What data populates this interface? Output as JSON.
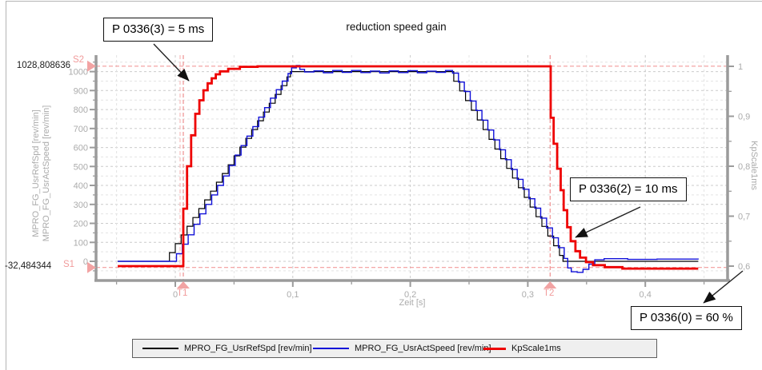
{
  "chart_data": {
    "type": "line",
    "title": "reduction speed gain",
    "x_axis": {
      "label": "Zeit [s]",
      "range_s": [
        -0.067,
        0.47
      ],
      "minor_step_s": 0.05,
      "ticks": [
        {
          "v": 0.0,
          "label": "0"
        },
        {
          "v": 0.1,
          "label": "0,1"
        },
        {
          "v": 0.2,
          "label": "0,2"
        },
        {
          "v": 0.3,
          "label": "0,3"
        },
        {
          "v": 0.4,
          "label": "0,4"
        }
      ]
    },
    "y_left_axis": {
      "labels": [
        "MPRO_FG_UsrRefSpd [rev/min]",
        "MPRO_FG_UsrActSpeed [rev/min]"
      ],
      "range": [
        -100,
        1080
      ],
      "minor_step": 50,
      "ticks": [
        0,
        100,
        200,
        300,
        400,
        500,
        600,
        700,
        800,
        900,
        1000
      ]
    },
    "y_right_axis": {
      "label": "KpScale1ms",
      "range": [
        0.6,
        1.0
      ],
      "minor_step": 0.05,
      "ticks": [
        {
          "v": 1.0,
          "label": "1"
        },
        {
          "v": 0.9,
          "label": "0,9"
        },
        {
          "v": 0.8,
          "label": "0,8"
        },
        {
          "v": 0.7,
          "label": "0,7"
        },
        {
          "v": 0.6,
          "label": "0,6"
        }
      ]
    },
    "cursors": {
      "s2": {
        "name": "S2",
        "value": 1028.808636,
        "value_label": "1028,808636"
      },
      "s1": {
        "name": "S1",
        "value": -32.484344,
        "value_label": "-32,484344"
      },
      "t1": {
        "name": "T1",
        "time_s": 0.0068
      },
      "trigger": {
        "time_s": 0.0041
      },
      "t2": {
        "name": "T2",
        "time_s": 0.319
      }
    },
    "annotations": [
      {
        "text": "P 0336(3) = 5 ms"
      },
      {
        "text": "P 0336(2) = 10 ms"
      },
      {
        "text": "P 0336(0) = 60 %"
      }
    ],
    "cursor_color": "#f29b9b",
    "legend_position": "bottom",
    "grid": true,
    "series": [
      {
        "name": "MPRO_FG_UsrRefSpd [rev/min]",
        "color": "#000000",
        "width": 1.2,
        "axis": "left",
        "points": [
          [
            -0.049,
            0
          ],
          [
            -0.01,
            0
          ],
          [
            -0.005,
            46
          ],
          [
            0,
            93
          ],
          [
            0.005,
            139
          ],
          [
            0.01,
            185
          ],
          [
            0.015,
            231
          ],
          [
            0.02,
            278
          ],
          [
            0.025,
            324
          ],
          [
            0.03,
            370
          ],
          [
            0.035,
            417
          ],
          [
            0.04,
            463
          ],
          [
            0.045,
            509
          ],
          [
            0.05,
            556
          ],
          [
            0.055,
            602
          ],
          [
            0.06,
            648
          ],
          [
            0.065,
            694
          ],
          [
            0.07,
            741
          ],
          [
            0.075,
            787
          ],
          [
            0.08,
            833
          ],
          [
            0.085,
            880
          ],
          [
            0.09,
            926
          ],
          [
            0.095,
            972
          ],
          [
            0.098,
            1000
          ],
          [
            0.232,
            1000
          ],
          [
            0.237,
            949
          ],
          [
            0.242,
            898
          ],
          [
            0.247,
            847
          ],
          [
            0.252,
            796
          ],
          [
            0.257,
            745
          ],
          [
            0.262,
            694
          ],
          [
            0.267,
            643
          ],
          [
            0.272,
            592
          ],
          [
            0.277,
            541
          ],
          [
            0.282,
            490
          ],
          [
            0.287,
            439
          ],
          [
            0.292,
            388
          ],
          [
            0.297,
            337
          ],
          [
            0.302,
            286
          ],
          [
            0.307,
            235
          ],
          [
            0.312,
            184
          ],
          [
            0.317,
            133
          ],
          [
            0.322,
            82
          ],
          [
            0.327,
            31
          ],
          [
            0.33,
            0
          ],
          [
            0.445,
            0
          ]
        ]
      },
      {
        "name": "MPRO_FG_UsrActSpeed [rev/min]",
        "color": "#1010d8",
        "width": 1.4,
        "axis": "left",
        "points": [
          [
            -0.049,
            0
          ],
          [
            -0.004,
            0
          ],
          [
            0.001,
            40
          ],
          [
            0.006,
            90
          ],
          [
            0.011,
            140
          ],
          [
            0.016,
            195
          ],
          [
            0.021,
            250
          ],
          [
            0.026,
            300
          ],
          [
            0.031,
            350
          ],
          [
            0.036,
            400
          ],
          [
            0.041,
            450
          ],
          [
            0.046,
            505
          ],
          [
            0.051,
            560
          ],
          [
            0.056,
            610
          ],
          [
            0.061,
            660
          ],
          [
            0.066,
            710
          ],
          [
            0.071,
            760
          ],
          [
            0.076,
            810
          ],
          [
            0.081,
            860
          ],
          [
            0.086,
            905
          ],
          [
            0.091,
            950
          ],
          [
            0.096,
            990
          ],
          [
            0.099,
            1020
          ],
          [
            0.103,
            1032
          ],
          [
            0.106,
            1012
          ],
          [
            0.11,
            998
          ],
          [
            0.118,
            1004
          ],
          [
            0.126,
            994
          ],
          [
            0.134,
            1006
          ],
          [
            0.142,
            996
          ],
          [
            0.15,
            1006
          ],
          [
            0.158,
            995
          ],
          [
            0.166,
            1003
          ],
          [
            0.174,
            993
          ],
          [
            0.182,
            1004
          ],
          [
            0.19,
            995
          ],
          [
            0.198,
            1005
          ],
          [
            0.206,
            994
          ],
          [
            0.214,
            1002
          ],
          [
            0.222,
            996
          ],
          [
            0.23,
            1006
          ],
          [
            0.236,
            992
          ],
          [
            0.241,
            945
          ],
          [
            0.246,
            895
          ],
          [
            0.251,
            845
          ],
          [
            0.256,
            795
          ],
          [
            0.261,
            744
          ],
          [
            0.266,
            692
          ],
          [
            0.271,
            640
          ],
          [
            0.276,
            588
          ],
          [
            0.281,
            536
          ],
          [
            0.286,
            484
          ],
          [
            0.291,
            432
          ],
          [
            0.296,
            380
          ],
          [
            0.301,
            330
          ],
          [
            0.306,
            280
          ],
          [
            0.311,
            228
          ],
          [
            0.316,
            176
          ],
          [
            0.321,
            124
          ],
          [
            0.326,
            72
          ],
          [
            0.331,
            15
          ],
          [
            0.334,
            -35
          ],
          [
            0.337,
            -55
          ],
          [
            0.342,
            -58
          ],
          [
            0.347,
            -42
          ],
          [
            0.352,
            -15
          ],
          [
            0.357,
            8
          ],
          [
            0.365,
            14
          ],
          [
            0.385,
            10
          ],
          [
            0.41,
            12
          ],
          [
            0.445,
            10
          ]
        ]
      },
      {
        "name": "KpScale1ms",
        "color": "#ee0000",
        "width": 2.8,
        "axis": "right",
        "points": [
          [
            -0.049,
            0.6
          ],
          [
            0.0065,
            0.6
          ],
          [
            0.0068,
            0.715
          ],
          [
            0.0095,
            0.715
          ],
          [
            0.01,
            0.8
          ],
          [
            0.013,
            0.8
          ],
          [
            0.0135,
            0.862
          ],
          [
            0.0165,
            0.862
          ],
          [
            0.017,
            0.905
          ],
          [
            0.02,
            0.905
          ],
          [
            0.0205,
            0.932
          ],
          [
            0.0235,
            0.932
          ],
          [
            0.024,
            0.952
          ],
          [
            0.027,
            0.952
          ],
          [
            0.0275,
            0.966
          ],
          [
            0.0305,
            0.966
          ],
          [
            0.031,
            0.976
          ],
          [
            0.034,
            0.976
          ],
          [
            0.0345,
            0.984
          ],
          [
            0.0375,
            0.984
          ],
          [
            0.038,
            0.99
          ],
          [
            0.045,
            0.995
          ],
          [
            0.055,
            0.999
          ],
          [
            0.07,
            1.0
          ],
          [
            0.319,
            1.0
          ],
          [
            0.3195,
            0.897
          ],
          [
            0.3215,
            0.897
          ],
          [
            0.322,
            0.845
          ],
          [
            0.3245,
            0.845
          ],
          [
            0.325,
            0.795
          ],
          [
            0.3275,
            0.795
          ],
          [
            0.328,
            0.752
          ],
          [
            0.33,
            0.752
          ],
          [
            0.3305,
            0.712
          ],
          [
            0.333,
            0.712
          ],
          [
            0.3335,
            0.678
          ],
          [
            0.336,
            0.678
          ],
          [
            0.3365,
            0.65
          ],
          [
            0.34,
            0.65
          ],
          [
            0.3405,
            0.63
          ],
          [
            0.344,
            0.63
          ],
          [
            0.3445,
            0.617
          ],
          [
            0.349,
            0.617
          ],
          [
            0.3495,
            0.608
          ],
          [
            0.355,
            0.608
          ],
          [
            0.3555,
            0.602
          ],
          [
            0.365,
            0.602
          ],
          [
            0.3655,
            0.598
          ],
          [
            0.38,
            0.598
          ],
          [
            0.3805,
            0.595
          ],
          [
            0.445,
            0.595
          ]
        ]
      }
    ]
  }
}
